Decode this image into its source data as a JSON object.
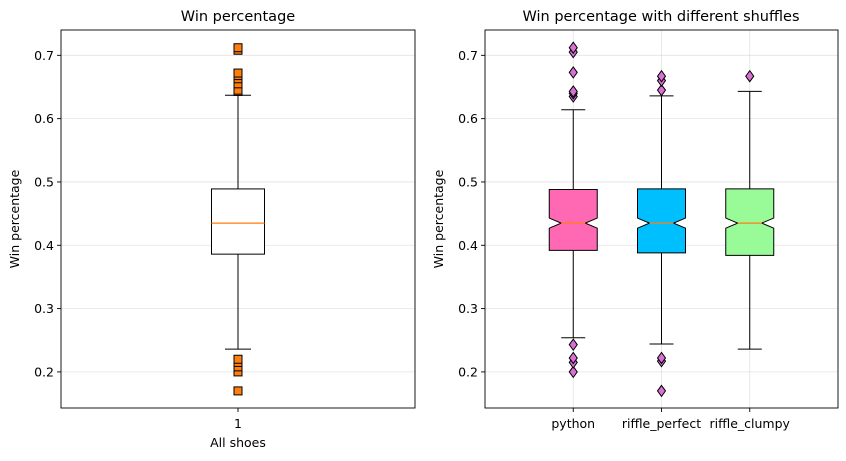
{
  "chart_data": [
    {
      "type": "box",
      "title": "Win percentage",
      "xlabel": "All shoes",
      "ylabel": "Win percentage",
      "ylim": [
        0.143,
        0.74
      ],
      "yticks": [
        0.2,
        0.3,
        0.4,
        0.5,
        0.6,
        0.7
      ],
      "grid": "horizontal",
      "notched": false,
      "categories": [
        "1"
      ],
      "boxes": [
        {
          "category": "1",
          "whisker_low": 0.236,
          "q1": 0.386,
          "median": 0.435,
          "q3": 0.489,
          "whisker_high": 0.637,
          "color": "#ffffff",
          "outliers": [
            0.17,
            0.2,
            0.208,
            0.215,
            0.22,
            0.643,
            0.645,
            0.655,
            0.663,
            0.668,
            0.672,
            0.708,
            0.712
          ],
          "outlier_marker": "square",
          "outlier_color": "#ff7f0e"
        }
      ]
    },
    {
      "type": "box",
      "title": "Win percentage with different shuffles",
      "xlabel": "",
      "ylabel": "Win percentage",
      "ylim": [
        0.143,
        0.74
      ],
      "yticks": [
        0.2,
        0.3,
        0.4,
        0.5,
        0.6,
        0.7
      ],
      "grid": "both",
      "notched": true,
      "categories": [
        "python",
        "riffle_perfect",
        "riffle_clumpy"
      ],
      "boxes": [
        {
          "category": "python",
          "whisker_low": 0.254,
          "q1": 0.392,
          "notch_low": 0.427,
          "median": 0.435,
          "notch_high": 0.443,
          "q3": 0.488,
          "whisker_high": 0.614,
          "color": "#ff69b4",
          "outliers": [
            0.2,
            0.215,
            0.222,
            0.243,
            0.635,
            0.64,
            0.643,
            0.673,
            0.705,
            0.712
          ],
          "outlier_marker": "diamond",
          "outlier_color": "#da70d6"
        },
        {
          "category": "riffle_perfect",
          "whisker_low": 0.244,
          "q1": 0.388,
          "notch_low": 0.427,
          "median": 0.435,
          "notch_high": 0.443,
          "q3": 0.489,
          "whisker_high": 0.636,
          "color": "#00bfff",
          "outliers": [
            0.17,
            0.217,
            0.222,
            0.645,
            0.66,
            0.667
          ],
          "outlier_marker": "diamond",
          "outlier_color": "#da70d6"
        },
        {
          "category": "riffle_clumpy",
          "whisker_low": 0.236,
          "q1": 0.384,
          "notch_low": 0.427,
          "median": 0.435,
          "notch_high": 0.443,
          "q3": 0.489,
          "whisker_high": 0.643,
          "color": "#98fb98",
          "outliers": [
            0.667
          ],
          "outlier_marker": "diamond",
          "outlier_color": "#da70d6"
        }
      ]
    }
  ]
}
